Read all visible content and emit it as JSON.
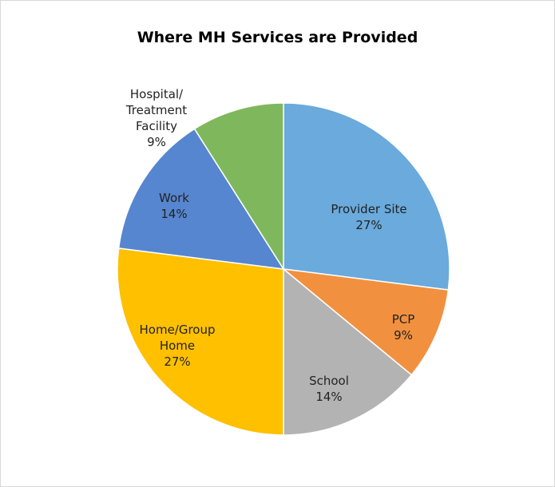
{
  "chart_data": {
    "type": "pie",
    "title": "Where MH Services are Provided",
    "categories": [
      "Provider Site",
      "PCP",
      "School",
      "Home/Group Home",
      "Work",
      "Hospital/ Treatment Facility"
    ],
    "values": [
      27,
      9,
      14,
      27,
      14,
      9
    ],
    "value_labels": [
      "27%",
      "9%",
      "14%",
      "27%",
      "14%",
      "9%"
    ],
    "colors": [
      "#6aaadc",
      "#f1913f",
      "#b3b3b3",
      "#ffc000",
      "#5686cf",
      "#7fb85c"
    ]
  }
}
